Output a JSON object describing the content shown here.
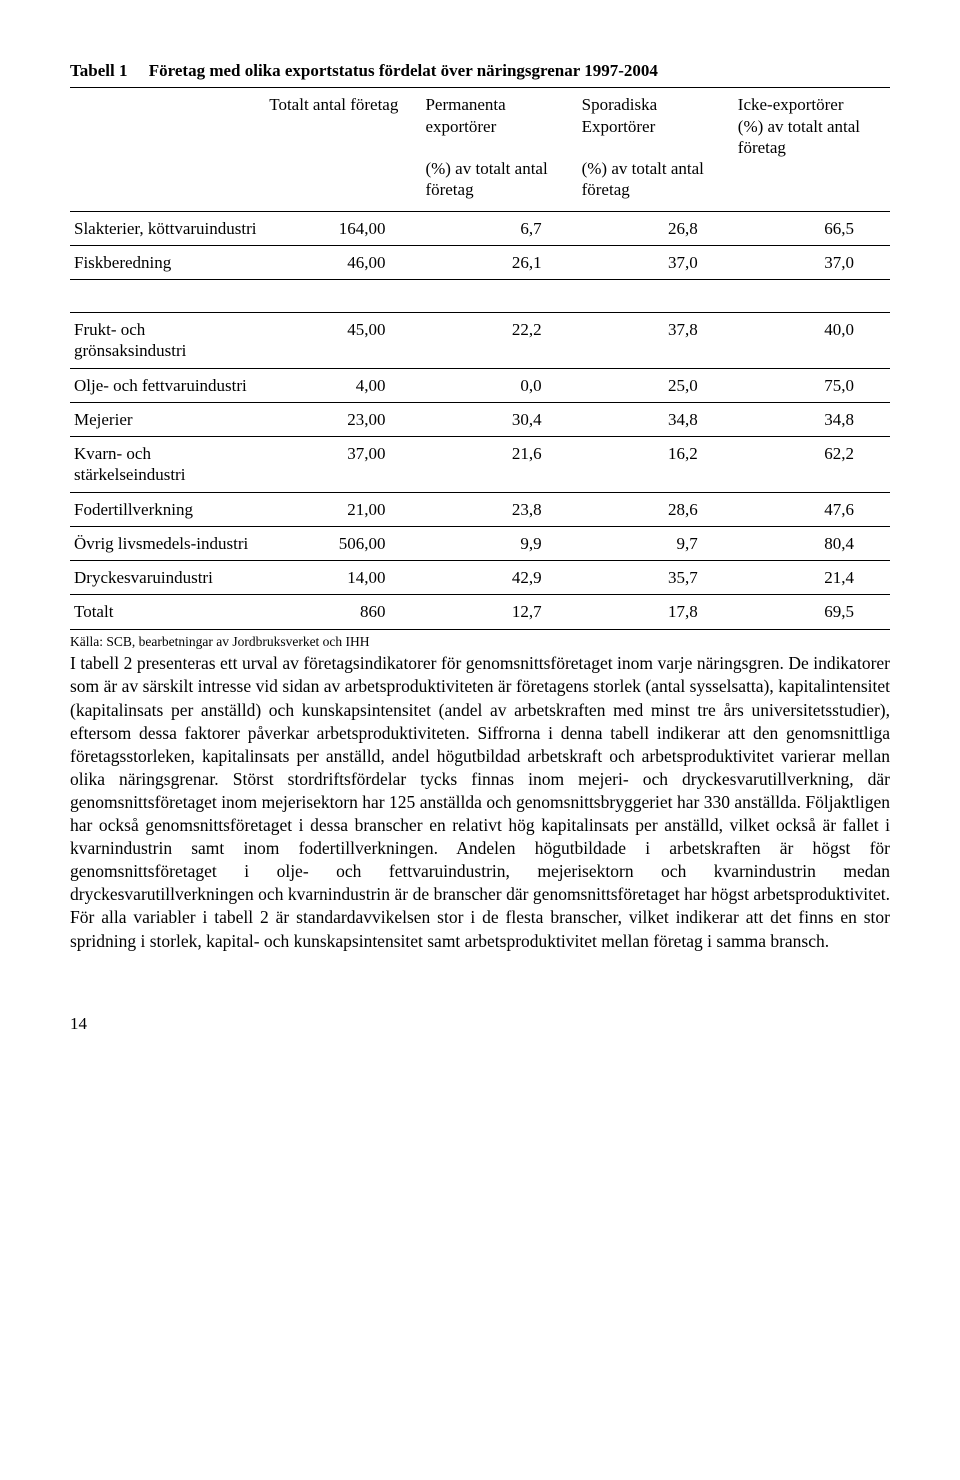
{
  "title_prefix": "Tabell 1",
  "title_text": "Företag med olika exportstatus fördelat över näringsgrenar 1997-2004",
  "headers": {
    "h1": "",
    "h2a": "Totalt antal företag",
    "h3a": "Permanenta exportörer",
    "h3b": "(%) av totalt antal företag",
    "h4a": "Sporadiska Exportörer",
    "h4b": "(%) av totalt antal företag",
    "h5a": "Icke-exportörer",
    "h5b": "(%) av totalt antal företag"
  },
  "rows": {
    "r1": {
      "label": "Slakterier, köttvaruindustri",
      "c1": "164,00",
      "c2": "6,7",
      "c3": "26,8",
      "c4": "66,5"
    },
    "r2": {
      "label": "Fiskberedning",
      "c1": "46,00",
      "c2": "26,1",
      "c3": "37,0",
      "c4": "37,0"
    },
    "r3": {
      "label": "Frukt- och grönsaksindustri",
      "c1": "45,00",
      "c2": "22,2",
      "c3": "37,8",
      "c4": "40,0"
    },
    "r4": {
      "label": "Olje- och fettvaruindustri",
      "c1": "4,00",
      "c2": "0,0",
      "c3": "25,0",
      "c4": "75,0"
    },
    "r5": {
      "label": "Mejerier",
      "c1": "23,00",
      "c2": "30,4",
      "c3": "34,8",
      "c4": "34,8"
    },
    "r6": {
      "label": "Kvarn- och stärkelseindustri",
      "c1": "37,00",
      "c2": "21,6",
      "c3": "16,2",
      "c4": "62,2"
    },
    "r7": {
      "label": "Fodertillverkning",
      "c1": "21,00",
      "c2": "23,8",
      "c3": "28,6",
      "c4": "47,6"
    },
    "r8": {
      "label": "Övrig livsmedels-industri",
      "c1": "506,00",
      "c2": "9,9",
      "c3": "9,7",
      "c4": "80,4"
    },
    "r9": {
      "label": "Dryckesvaruindustri",
      "c1": "14,00",
      "c2": "42,9",
      "c3": "35,7",
      "c4": "21,4"
    },
    "r10": {
      "label": "Totalt",
      "c1": "860",
      "c2": "12,7",
      "c3": "17,8",
      "c4": "69,5"
    }
  },
  "source": "Källa: SCB, bearbetningar av Jordbruksverket och IHH",
  "body": "I tabell 2 presenteras ett urval av företagsindikatorer för genomsnittsföretaget inom varje näringsgren. De indikatorer som är av särskilt intresse vid sidan av arbetsproduktiviteten är företagens storlek (antal sysselsatta), kapitalintensitet (kapitalinsats per anställd) och kunskapsintensitet (andel av arbetskraften med minst tre års universitetsstudier), eftersom dessa faktorer påverkar arbetsproduktiviteten. Siffrorna i denna tabell indikerar att den genomsnittliga företagsstorleken, kapitalinsats per anställd, andel högutbildad arbetskraft och arbetsproduktivitet varierar mellan olika näringsgrenar. Störst stordriftsfördelar tycks finnas inom mejeri- och dryckesvarutillverkning, där genomsnittsföretaget inom mejerisektorn har 125 anställda och genomsnittsbryggeriet har 330 anställda. Följaktligen har också genomsnittsföretaget i dessa branscher en relativt hög kapitalinsats per anställd, vilket också är fallet i kvarnindustrin samt inom fodertillverkningen. Andelen högutbildade i arbetskraften är högst för genomsnittsföretaget i olje- och fettvaruindustrin, mejerisektorn och kvarnindustrin medan dryckesvarutillverkningen och kvarnindustrin är de branscher där genomsnittsföretaget har högst arbetsproduktivitet. För alla variabler i tabell 2 är standardavvikelsen stor i de flesta branscher, vilket indikerar att det finns en stor spridning i storlek, kapital- och kunskapsintensitet samt arbetsproduktivitet mellan företag i samma bransch.",
  "page_number": "14"
}
